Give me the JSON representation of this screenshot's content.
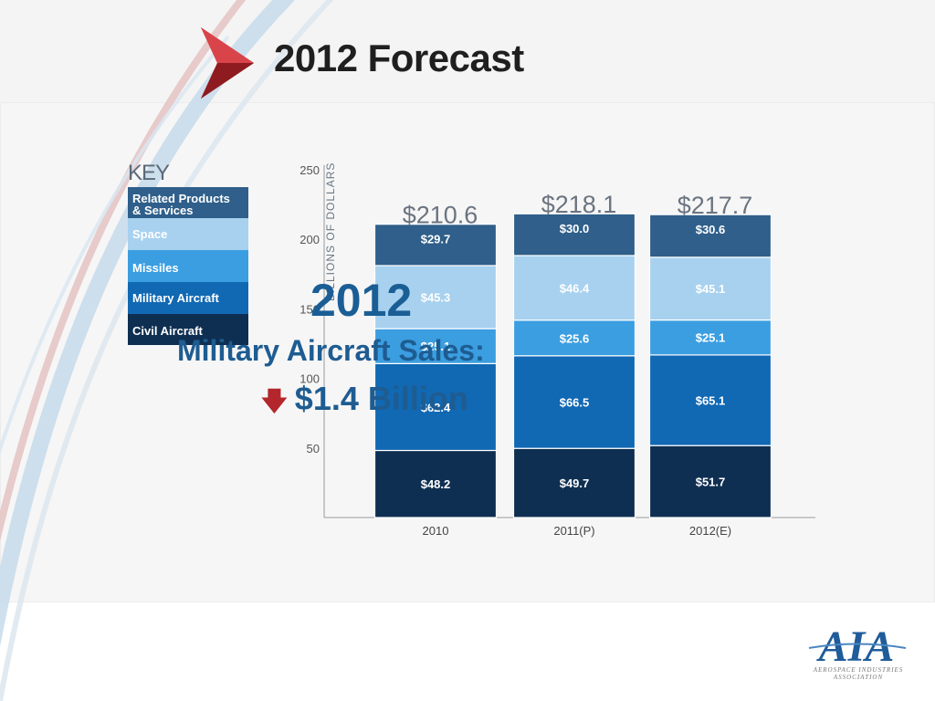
{
  "title": "2012 Forecast",
  "key": {
    "title": "KEY",
    "items": [
      {
        "label": "Related Products & Services",
        "line1": "Related Products",
        "line2": "& Services",
        "color": "#2f5f8a"
      },
      {
        "label": "Space",
        "color": "#a7d1ef"
      },
      {
        "label": "Missiles",
        "color": "#3b9ee0"
      },
      {
        "label": "Military Aircraft",
        "color": "#1168b3"
      },
      {
        "label": "Civil Aircraft",
        "color": "#0f2f52"
      }
    ]
  },
  "chart_data": {
    "type": "bar",
    "stacked": true,
    "categories": [
      "2010",
      "2011(P)",
      "2012(E)"
    ],
    "series": [
      {
        "name": "Civil Aircraft",
        "values": [
          48.2,
          49.7,
          51.7
        ],
        "labels": [
          "$48.2",
          "$49.7",
          "$51.7"
        ],
        "color": "#0f2f52"
      },
      {
        "name": "Military Aircraft",
        "values": [
          62.4,
          66.5,
          65.1
        ],
        "labels": [
          "$62.4",
          "$66.5",
          "$65.1"
        ],
        "color": "#1168b3"
      },
      {
        "name": "Missiles",
        "values": [
          25.1,
          25.6,
          25.1
        ],
        "labels": [
          "$25.1",
          "$25.6",
          "$25.1"
        ],
        "color": "#3b9ee0"
      },
      {
        "name": "Space",
        "values": [
          45.3,
          46.4,
          45.1
        ],
        "labels": [
          "$45.3",
          "$46.4",
          "$45.1"
        ],
        "color": "#a7d1ef"
      },
      {
        "name": "Related Products & Services",
        "values": [
          29.7,
          30.0,
          30.6
        ],
        "labels": [
          "$29.7",
          "$30.0",
          "$30.6"
        ],
        "color": "#2f5f8a"
      }
    ],
    "totals": [
      "$210.6",
      "$218.1",
      "$217.7"
    ],
    "yticks": [
      "250",
      "200",
      "150",
      "100",
      "50"
    ],
    "ylabel": "BILLIONS OF DOLLARS",
    "ylim": [
      0,
      250
    ],
    "grid": false,
    "legend": "left"
  },
  "overlay": {
    "year": "2012",
    "headline": "Military Aircraft Sales:",
    "delta": "$1.4 Billion"
  },
  "footer": {
    "logo_text": "AIA",
    "org_line1": "AEROSPACE INDUSTRIES",
    "org_line2": "ASSOCIATION"
  }
}
